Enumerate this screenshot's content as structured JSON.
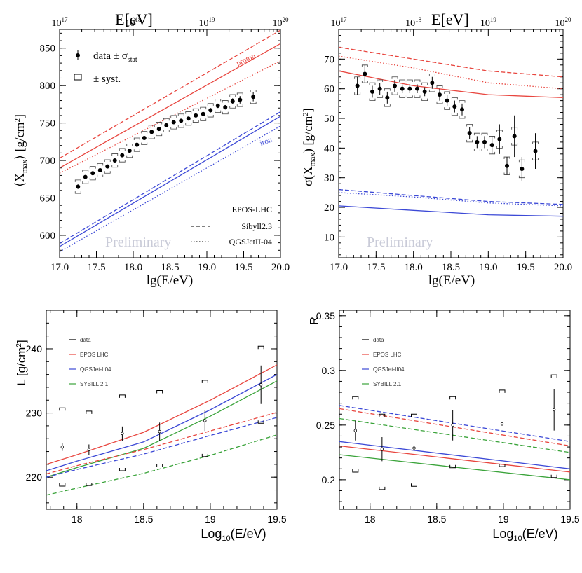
{
  "chart_data": [
    {
      "type": "line",
      "id": "xmax",
      "xlabel": "lg(E/eV)",
      "ylabel": "⟨X_max⟩ [g/cm²]",
      "top_axis_label": "E[eV]",
      "xlim": [
        17.0,
        20.0
      ],
      "ylim": [
        570,
        875
      ],
      "xticks": [
        17.0,
        17.5,
        18.0,
        18.5,
        19.0,
        19.5,
        20.0
      ],
      "xtick_labels": [
        "17.0",
        "17.5",
        "18.0",
        "18.5",
        "19.0",
        "19.5",
        "20.0"
      ],
      "yticks": [
        600,
        650,
        700,
        750,
        800,
        850
      ],
      "ytick_labels": [
        "600",
        "650",
        "700",
        "750",
        "800",
        "850"
      ],
      "top_ticks": [
        17,
        18,
        19,
        20
      ],
      "top_tick_labels": [
        "17",
        "18",
        "19",
        "20"
      ],
      "legend": {
        "data_label": "data ± σ_stat",
        "syst_label": "± syst."
      },
      "model_legend": [
        "EPOS-LHC",
        "Sibyll2.3",
        "QGSJetII-04"
      ],
      "annotations": [
        "proton",
        "iron"
      ],
      "watermark": "Preliminary",
      "series": [
        {
          "name": "proton EPOS-LHC",
          "color": "#e8463f",
          "dash": "solid",
          "x": [
            17.0,
            20.0
          ],
          "y": [
            690,
            856
          ]
        },
        {
          "name": "proton Sibyll2.3",
          "color": "#e8463f",
          "dash": "dashed",
          "x": [
            17.0,
            20.0
          ],
          "y": [
            703,
            874
          ]
        },
        {
          "name": "proton QGSJetII-04",
          "color": "#e8463f",
          "dash": "dotted",
          "x": [
            17.0,
            20.0
          ],
          "y": [
            683,
            833
          ]
        },
        {
          "name": "iron EPOS-LHC",
          "color": "#3c49d6",
          "dash": "solid",
          "x": [
            17.0,
            20.0
          ],
          "y": [
            585,
            759
          ]
        },
        {
          "name": "iron Sibyll2.3",
          "color": "#3c49d6",
          "dash": "dashed",
          "x": [
            17.0,
            20.0
          ],
          "y": [
            589,
            765
          ]
        },
        {
          "name": "iron QGSJetII-04",
          "color": "#3c49d6",
          "dash": "dotted",
          "x": [
            17.0,
            20.0
          ],
          "y": [
            578,
            746
          ]
        }
      ],
      "data": {
        "x": [
          17.25,
          17.35,
          17.45,
          17.55,
          17.65,
          17.75,
          17.85,
          17.95,
          18.05,
          18.15,
          18.25,
          18.35,
          18.45,
          18.55,
          18.65,
          18.75,
          18.85,
          18.95,
          19.05,
          19.15,
          19.25,
          19.35,
          19.45,
          19.63
        ],
        "y": [
          665,
          678,
          683,
          687,
          692,
          700,
          707,
          713,
          721,
          730,
          738,
          742,
          747,
          751,
          753,
          756,
          760,
          762,
          767,
          773,
          771,
          779,
          781,
          785
        ],
        "err": [
          3,
          2,
          2,
          2,
          2,
          2,
          2,
          2,
          2,
          2,
          2,
          2,
          2,
          2,
          2,
          2,
          2,
          2,
          3,
          3,
          3,
          4,
          5,
          6
        ],
        "syst": [
          9,
          9,
          9,
          9,
          9,
          9,
          9,
          9,
          9,
          9,
          9,
          9,
          9,
          9,
          9,
          9,
          9,
          9,
          9,
          9,
          9,
          9,
          9,
          9
        ]
      }
    },
    {
      "type": "line",
      "id": "sigma",
      "xlabel": "lg(E/eV)",
      "ylabel": "σ(X_max) [g/cm²]",
      "top_axis_label": "E[eV]",
      "xlim": [
        17.0,
        20.0
      ],
      "ylim": [
        3,
        80
      ],
      "xticks": [
        17.0,
        17.5,
        18.0,
        18.5,
        19.0,
        19.5,
        20.0
      ],
      "xtick_labels": [
        "17.0",
        "17.5",
        "18.0",
        "18.5",
        "19.0",
        "19.5",
        "20.0"
      ],
      "yticks": [
        10,
        20,
        30,
        40,
        50,
        60,
        70
      ],
      "ytick_labels": [
        "10",
        "20",
        "30",
        "40",
        "50",
        "60",
        "70"
      ],
      "top_ticks": [
        17,
        18,
        19,
        20
      ],
      "top_tick_labels": [
        "17",
        "18",
        "19",
        "20"
      ],
      "watermark": "Preliminary",
      "series": [
        {
          "name": "proton Sibyll2.3",
          "color": "#e8463f",
          "dash": "dashed",
          "x": [
            17.0,
            18.0,
            19.0,
            20.0
          ],
          "y": [
            74,
            70,
            66,
            64
          ]
        },
        {
          "name": "proton QGSJetII-04",
          "color": "#e8463f",
          "dash": "dotted",
          "x": [
            17.0,
            18.0,
            19.0,
            20.0
          ],
          "y": [
            71,
            67,
            62,
            60
          ]
        },
        {
          "name": "proton EPOS-LHC",
          "color": "#e8463f",
          "dash": "solid",
          "x": [
            17.0,
            18.0,
            19.0,
            20.0
          ],
          "y": [
            66,
            61,
            58,
            57
          ]
        },
        {
          "name": "iron Sibyll2.3",
          "color": "#3c49d6",
          "dash": "dashed",
          "x": [
            17.0,
            18.0,
            19.0,
            20.0
          ],
          "y": [
            26,
            24,
            22,
            21
          ]
        },
        {
          "name": "iron QGSJetII-04",
          "color": "#3c49d6",
          "dash": "dotted",
          "x": [
            17.0,
            18.0,
            19.0,
            20.0
          ],
          "y": [
            25,
            23.5,
            21.5,
            20.5
          ]
        },
        {
          "name": "iron EPOS-LHC",
          "color": "#3c49d6",
          "dash": "solid",
          "x": [
            17.0,
            18.0,
            19.0,
            20.0
          ],
          "y": [
            20.5,
            19,
            17.5,
            17
          ]
        }
      ],
      "data": {
        "x": [
          17.25,
          17.35,
          17.45,
          17.55,
          17.65,
          17.75,
          17.85,
          17.95,
          18.05,
          18.15,
          18.25,
          18.35,
          18.45,
          18.55,
          18.65,
          18.75,
          18.85,
          18.95,
          19.05,
          19.15,
          19.25,
          19.35,
          19.45,
          19.63
        ],
        "y": [
          61,
          65,
          59,
          60,
          57,
          61,
          60,
          60,
          60,
          59,
          62,
          58,
          56,
          54,
          53,
          45,
          42,
          42,
          41,
          43,
          34,
          44,
          33,
          39
        ],
        "err": [
          3,
          3,
          2,
          2,
          2,
          2,
          1.5,
          1.5,
          1.5,
          1.5,
          2,
          2,
          2,
          2,
          2,
          2,
          2,
          2,
          3,
          5,
          3,
          7,
          4,
          6
        ],
        "syst": [
          3,
          3,
          3,
          3,
          3,
          3,
          3,
          3,
          3,
          3,
          3,
          3,
          3,
          3,
          3,
          3,
          3,
          3,
          3,
          3,
          3,
          3,
          3,
          3
        ]
      }
    },
    {
      "type": "line",
      "id": "L",
      "xlabel": "Log10(E/eV)",
      "ylabel": "L [g/cm²]",
      "xlim": [
        17.77,
        19.5
      ],
      "ylim": [
        215,
        246
      ],
      "xticks": [
        18,
        18.5,
        19,
        19.5
      ],
      "xtick_labels": [
        "18",
        "18.5",
        "19",
        "19.5"
      ],
      "yticks": [
        220,
        230,
        240
      ],
      "ytick_labels": [
        "220",
        "230",
        "240"
      ],
      "legend": [
        {
          "label": "data",
          "color": "#000000"
        },
        {
          "label": "EPOS LHC",
          "color": "#e8463f"
        },
        {
          "label": "QGSJet-II04",
          "color": "#3c49d6"
        },
        {
          "label": "SYBILL 2.1",
          "color": "#3aa33a"
        }
      ],
      "series": [
        {
          "name": "EPOS LHC p",
          "color": "#e8463f",
          "dash": "solid",
          "x": [
            17.77,
            18.0,
            18.5,
            19.0,
            19.5
          ],
          "y": [
            222,
            223.5,
            227,
            232,
            237.5
          ]
        },
        {
          "name": "QGSJet-II04 p",
          "color": "#3c49d6",
          "dash": "solid",
          "x": [
            17.77,
            18.0,
            18.5,
            19.0,
            19.5
          ],
          "y": [
            221,
            222.5,
            225.5,
            230.5,
            236
          ]
        },
        {
          "name": "SYBILL 2.1 p",
          "color": "#3aa33a",
          "dash": "solid",
          "x": [
            17.77,
            18.0,
            18.5,
            19.0,
            19.5
          ],
          "y": [
            220,
            221.5,
            224.5,
            229.5,
            235
          ]
        },
        {
          "name": "EPOS LHC Fe",
          "color": "#e8463f",
          "dash": "dashed",
          "x": [
            17.77,
            18.0,
            18.5,
            19.0,
            19.5
          ],
          "y": [
            220.5,
            221.8,
            224.3,
            227.2,
            230.1
          ]
        },
        {
          "name": "QGSJet-II04 Fe",
          "color": "#3c49d6",
          "dash": "dashed",
          "x": [
            17.77,
            18.0,
            18.5,
            19.0,
            19.5
          ],
          "y": [
            220,
            221.2,
            223.6,
            226.5,
            229.3
          ]
        },
        {
          "name": "SYBILL 2.1 Fe",
          "color": "#3aa33a",
          "dash": "dashed",
          "x": [
            17.77,
            18.0,
            18.5,
            19.0,
            19.5
          ],
          "y": [
            217.2,
            218.3,
            220.6,
            223.4,
            226.6
          ]
        }
      ],
      "data": {
        "x": [
          17.89,
          18.09,
          18.34,
          18.62,
          18.96,
          19.38
        ],
        "y": [
          224.7,
          224.3,
          226.8,
          227.1,
          228.8,
          234.4
        ],
        "err": [
          0.6,
          0.8,
          1.1,
          1.4,
          1.6,
          3.0
        ],
        "syst_up": [
          230.8,
          230.3,
          232.8,
          233.5,
          235.1,
          240.4
        ],
        "syst_down": [
          218.6,
          218.7,
          221.0,
          221.6,
          223.2,
          228.4
        ]
      }
    },
    {
      "type": "line",
      "id": "R",
      "xlabel": "Log10(E/eV)",
      "ylabel": "R",
      "xlim": [
        17.77,
        19.5
      ],
      "ylim": [
        0.173,
        0.355
      ],
      "xticks": [
        18,
        18.5,
        19,
        19.5
      ],
      "xtick_labels": [
        "18",
        "18.5",
        "19",
        "19.5"
      ],
      "yticks": [
        0.2,
        0.25,
        0.3,
        0.35
      ],
      "ytick_labels": [
        "0.2",
        "0.25",
        "0.3",
        "0.35"
      ],
      "legend": [
        {
          "label": "data",
          "color": "#000000"
        },
        {
          "label": "EPOS LHC",
          "color": "#e8463f"
        },
        {
          "label": "QGSJet-II04",
          "color": "#3c49d6"
        },
        {
          "label": "SYBILL 2.1",
          "color": "#3aa33a"
        }
      ],
      "series": [
        {
          "name": "QGSJet-II04 p",
          "color": "#3c49d6",
          "dash": "dashed",
          "x": [
            17.77,
            19.5
          ],
          "y": [
            0.268,
            0.235
          ]
        },
        {
          "name": "EPOS LHC p",
          "color": "#e8463f",
          "dash": "dashed",
          "x": [
            17.77,
            19.5
          ],
          "y": [
            0.265,
            0.231
          ]
        },
        {
          "name": "SYBILL 2.1 p",
          "color": "#3aa33a",
          "dash": "dashed",
          "x": [
            17.77,
            19.5
          ],
          "y": [
            0.256,
            0.225
          ]
        },
        {
          "name": "QGSJet-II04 Fe",
          "color": "#3c49d6",
          "dash": "solid",
          "x": [
            17.77,
            19.5
          ],
          "y": [
            0.235,
            0.21
          ]
        },
        {
          "name": "EPOS LHC Fe",
          "color": "#e8463f",
          "dash": "solid",
          "x": [
            17.77,
            19.5
          ],
          "y": [
            0.231,
            0.207
          ]
        },
        {
          "name": "SYBILL 2.1 Fe",
          "color": "#3aa33a",
          "dash": "solid",
          "x": [
            17.77,
            19.5
          ],
          "y": [
            0.223,
            0.2
          ]
        }
      ],
      "data": {
        "x": [
          17.89,
          18.09,
          18.33,
          18.62,
          18.99,
          19.38
        ],
        "y": [
          0.245,
          0.228,
          0.229,
          0.25,
          0.251,
          0.264
        ],
        "err": [
          0.009,
          0.011,
          0.001,
          0.014,
          0.001,
          0.019
        ],
        "syst_up": [
          0.276,
          0.26,
          0.26,
          0.276,
          0.282,
          0.296
        ],
        "syst_down": [
          0.207,
          0.191,
          0.194,
          0.211,
          0.212,
          0.202
        ]
      }
    }
  ]
}
